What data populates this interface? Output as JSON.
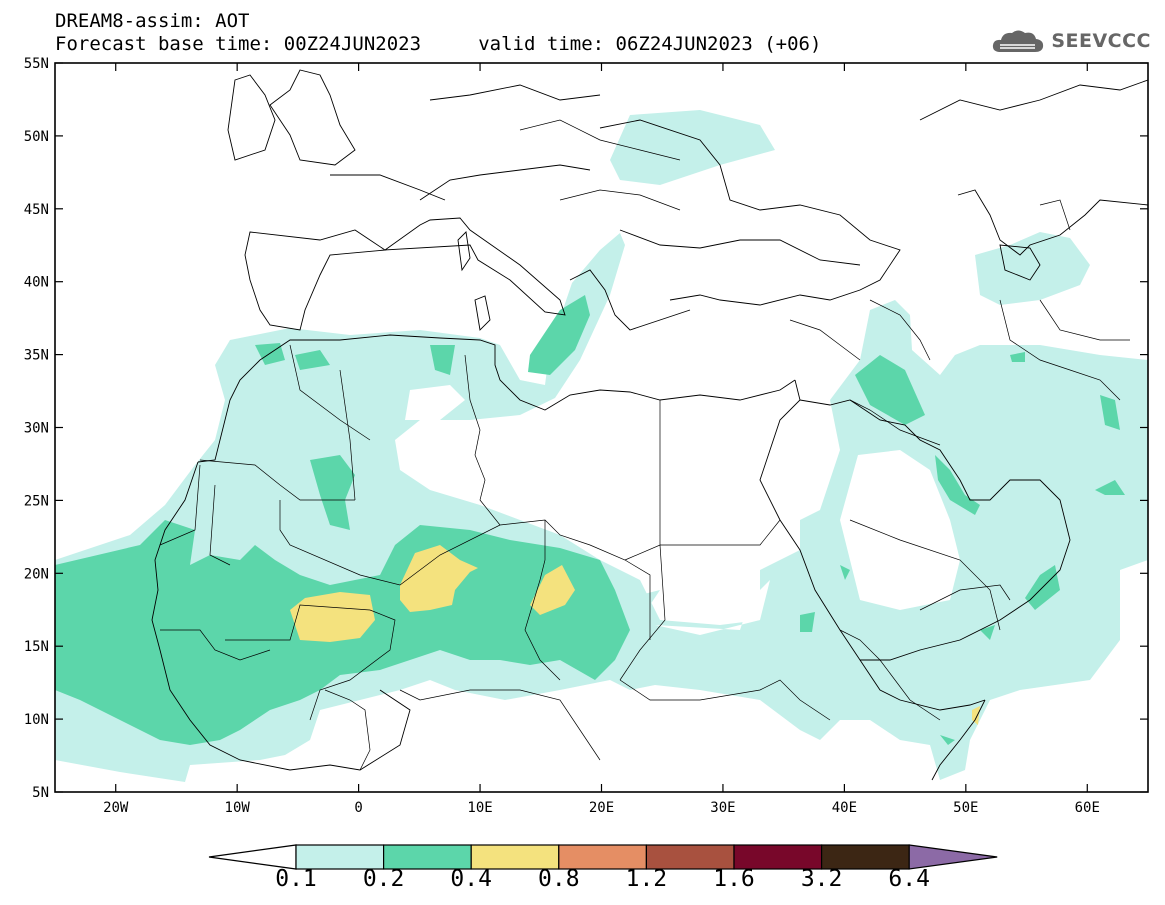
{
  "header": {
    "title_line1": "DREAM8-assim: AOT",
    "title_line2": "Forecast base time: 00Z24JUN2023     valid time: 06Z24JUN2023 (+06)",
    "logo_text": "SEEVCCC"
  },
  "map": {
    "extent": {
      "lon_min": -25,
      "lon_max": 65,
      "lat_min": 5,
      "lat_max": 55
    },
    "lat_labels": [
      "55N",
      "50N",
      "45N",
      "40N",
      "35N",
      "30N",
      "25N",
      "20N",
      "15N",
      "10N",
      "5N"
    ],
    "lat_values": [
      55,
      50,
      45,
      40,
      35,
      30,
      25,
      20,
      15,
      10,
      5
    ],
    "lon_labels": [
      "20W",
      "10W",
      "0",
      "10E",
      "20E",
      "30E",
      "40E",
      "50E",
      "60E"
    ],
    "lon_values": [
      -20,
      -10,
      0,
      10,
      20,
      30,
      40,
      50,
      60
    ]
  },
  "colorbar": {
    "colors": [
      "#c4f0ea",
      "#5cd6aa",
      "#f4e27e",
      "#e58e64",
      "#a8513f",
      "#78072a",
      "#3c2614",
      "#8c6aa6"
    ],
    "labels": [
      "0.1",
      "0.2",
      "0.4",
      "0.8",
      "1.2",
      "1.6",
      "3.2",
      "6.4"
    ]
  }
}
